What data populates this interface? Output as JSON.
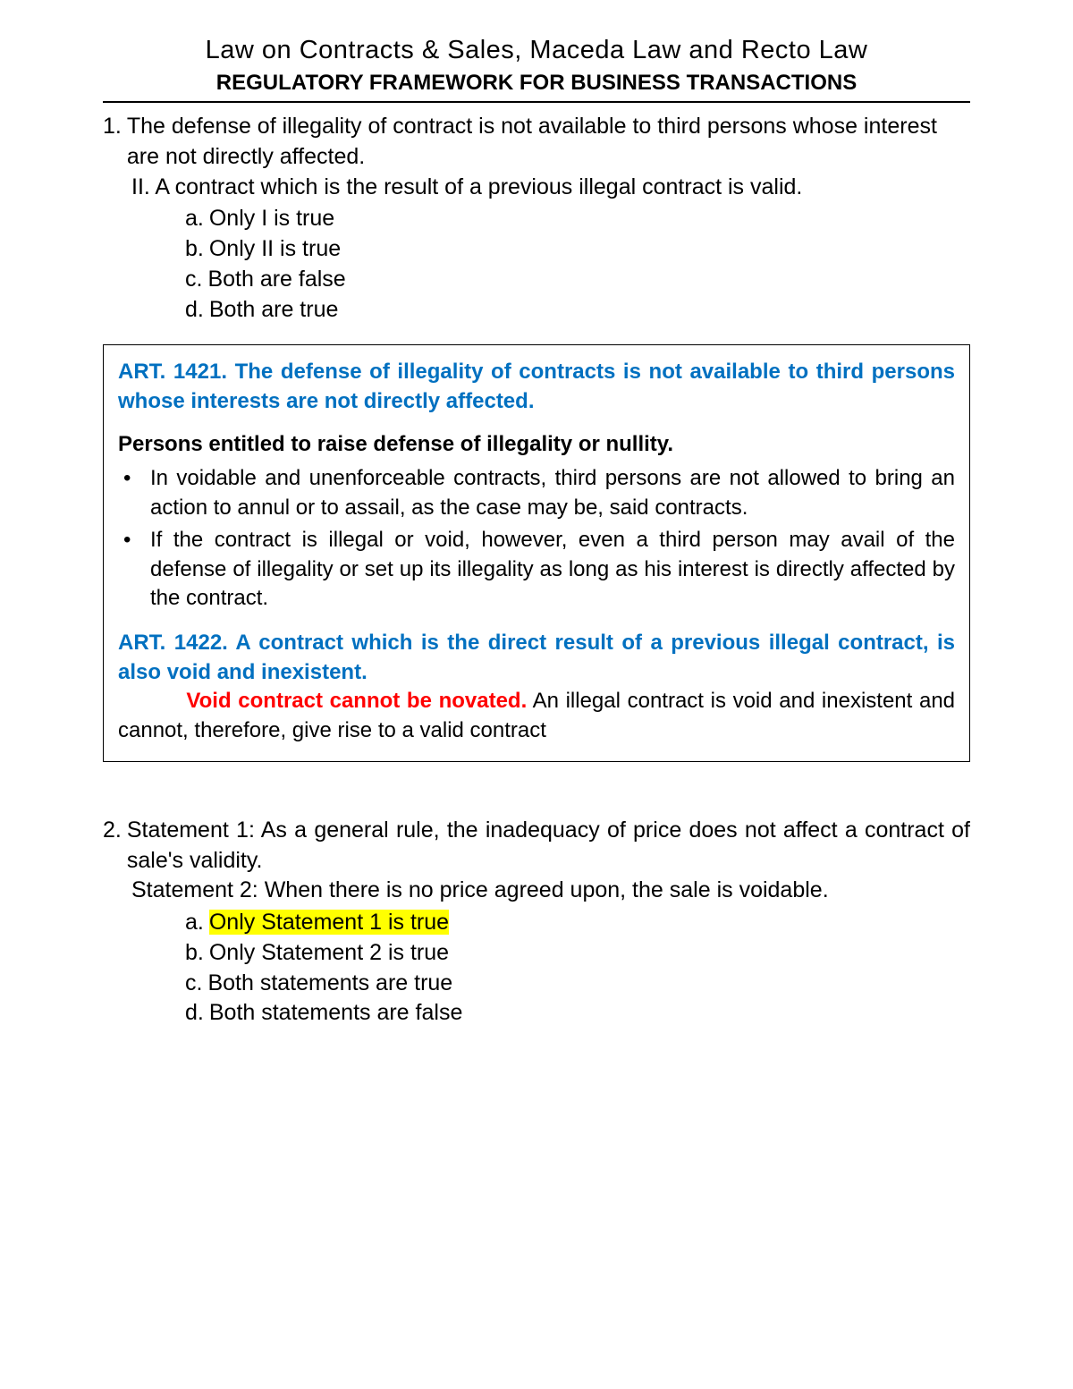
{
  "header": {
    "title": "Law on Contracts & Sales, Maceda Law and Recto Law",
    "subtitle": "REGULATORY FRAMEWORK FOR BUSINESS TRANSACTIONS"
  },
  "q1": {
    "number": "1.",
    "stem_line1": "The defense of illegality of contract is not available to third persons whose interest are not directly affected.",
    "stem_line2": "II. A contract which is the result of a previous illegal contract is valid.",
    "opts": {
      "a": "Only I is true",
      "b": "Only II is true",
      "c": "Both are false",
      "d": "Both are true"
    }
  },
  "box": {
    "art1421": "ART. 1421. The defense of illegality of contracts is not available to third persons whose interests are not directly affected.",
    "subhead": "Persons entitled to raise defense of illegality or nullity.",
    "bullet1": "In voidable and unenforceable contracts, third persons are not allowed to bring an action to annul or to assail, as the case may be, said contracts.",
    "bullet2": "If the contract is illegal or void, however, even a third person may avail of the defense of illegality or set up its illegality as long as his interest is directly affected by the contract.",
    "art1422": "ART. 1422. A contract which is the direct result of a previous illegal contract, is also void and inexistent.",
    "red": "Void contract cannot be novated.",
    "tail": " An illegal contract is void and inexistent and cannot, therefore, give rise to a valid contract"
  },
  "q2": {
    "number": "2.",
    "s1": "Statement 1: As a general rule, the inadequacy of price does not affect a contract of sale's validity.",
    "s2": "Statement 2: When there is no price agreed upon, the sale is voidable.",
    "opts": {
      "a": "Only Statement 1 is true",
      "b": "Only Statement 2 is true",
      "c": "Both statements are true",
      "d": "Both statements are false"
    }
  },
  "letters": {
    "a": "a.",
    "b": "b.",
    "c": "c.",
    "d": "d."
  },
  "bullet_mark": "•"
}
